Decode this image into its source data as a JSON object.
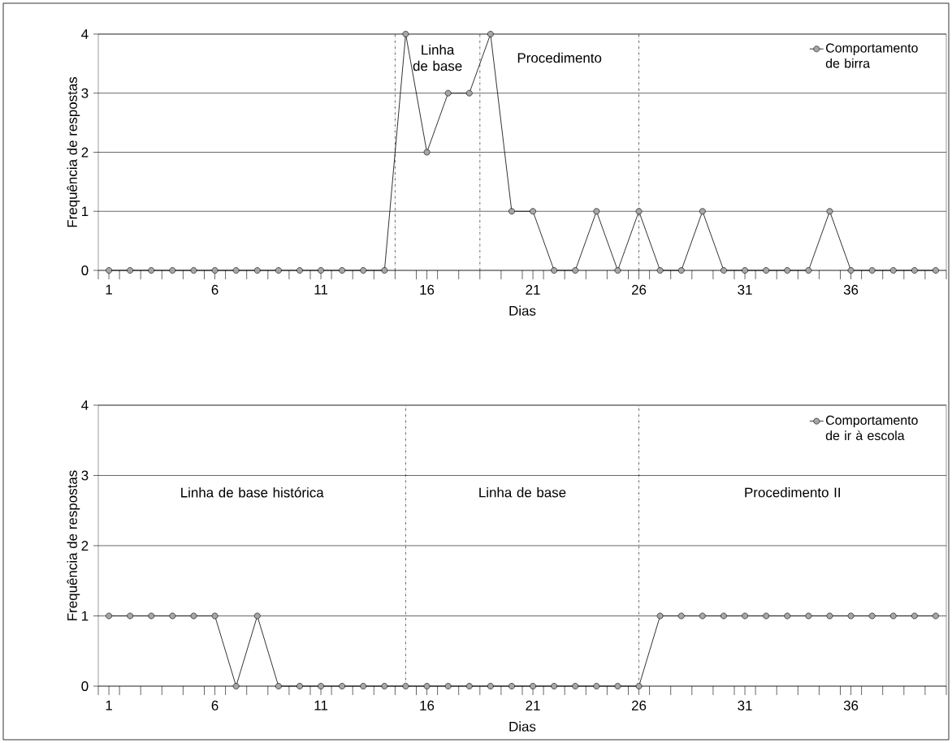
{
  "chart_data": [
    {
      "type": "line",
      "xlabel": "Dias",
      "ylabel": "Frequência de respostas",
      "x": [
        1,
        2,
        3,
        4,
        5,
        6,
        7,
        8,
        9,
        10,
        11,
        12,
        13,
        14,
        15,
        16,
        17,
        18,
        19,
        20,
        21,
        22,
        23,
        24,
        25,
        26,
        27,
        28,
        29,
        30,
        31,
        32,
        33,
        34,
        35,
        36,
        37,
        38,
        39,
        40
      ],
      "series": [
        {
          "name": "Comportamento de birra",
          "color": "#000000",
          "values": [
            0,
            0,
            0,
            0,
            0,
            0,
            0,
            0,
            0,
            0,
            0,
            0,
            0,
            0,
            4,
            2,
            3,
            3,
            4,
            1,
            1,
            0,
            0,
            1,
            0,
            1,
            0,
            0,
            1,
            0,
            0,
            0,
            0,
            0,
            1,
            0,
            0,
            0,
            0,
            0
          ]
        }
      ],
      "xlim": [
        0.5,
        40.5
      ],
      "xticks": [
        1,
        6,
        11,
        16,
        21,
        26,
        31,
        36,
        {
          "value": 0.5,
          "label": null
        },
        {
          "value": 1.5,
          "label": null
        },
        {
          "value": 2.5,
          "label": null
        },
        {
          "value": 3.5,
          "label": null
        },
        {
          "value": 4.5,
          "label": null
        },
        {
          "value": 5.5,
          "label": null
        },
        {
          "value": 6.5,
          "label": null
        },
        {
          "value": 7.5,
          "label": null
        },
        {
          "value": 8.5,
          "label": null
        },
        {
          "value": 9.5,
          "label": null
        },
        {
          "value": 10.5,
          "label": null
        },
        {
          "value": 11.5,
          "label": null
        },
        {
          "value": 12.5,
          "label": null
        },
        {
          "value": 13.5,
          "label": null
        },
        {
          "value": 14.5,
          "label": null
        },
        {
          "value": 15.5,
          "label": null
        },
        {
          "value": 16.5,
          "label": null
        },
        {
          "value": 17.5,
          "label": null
        },
        {
          "value": 18.5,
          "label": null
        },
        {
          "value": 19.5,
          "label": null
        },
        {
          "value": 20.5,
          "label": null
        },
        {
          "value": 21.5,
          "label": null
        },
        {
          "value": 22.5,
          "label": null
        },
        {
          "value": 23.5,
          "label": null
        },
        {
          "value": 24.5,
          "label": null
        },
        {
          "value": 25.5,
          "label": null
        },
        {
          "value": 26.5,
          "label": null
        },
        {
          "value": 27.5,
          "label": null
        },
        {
          "value": 28.5,
          "label": null
        },
        {
          "value": 29.5,
          "label": null
        },
        {
          "value": 30.5,
          "label": null
        },
        {
          "value": 31.5,
          "label": null
        },
        {
          "value": 32.5,
          "label": null
        },
        {
          "value": 33.5,
          "label": null
        },
        {
          "value": 34.5,
          "label": null
        },
        {
          "value": 35.5,
          "label": null
        },
        {
          "value": 36.5,
          "label": null
        },
        {
          "value": 37.5,
          "label": null
        },
        {
          "value": 38.5,
          "label": null
        },
        {
          "value": 39.5,
          "label": null
        },
        {
          "value": 40.5,
          "label": null
        }
      ],
      "ylim": [
        0,
        4
      ],
      "yticks": [
        0,
        1,
        2,
        3,
        4
      ],
      "grid": "y",
      "legend": "top right",
      "marker": "circle",
      "line_style": "solid",
      "ref_lines": [
        {
          "axis": "x",
          "value": 14.5,
          "line_style": "dashdot"
        },
        {
          "axis": "x",
          "value": 18.5,
          "line_style": "dashdot"
        },
        {
          "axis": "x",
          "value": 26,
          "line_style": "dashdot"
        }
      ],
      "annotations": [
        "Linha de base",
        "Procedimento"
      ]
    },
    {
      "type": "line",
      "xlabel": "Dias",
      "ylabel": "Frequência de respostas",
      "x": [
        1,
        2,
        3,
        4,
        5,
        6,
        7,
        8,
        9,
        10,
        11,
        12,
        13,
        14,
        15,
        16,
        17,
        18,
        19,
        20,
        21,
        22,
        23,
        24,
        25,
        26,
        27,
        28,
        29,
        30,
        31,
        32,
        33,
        34,
        35,
        36,
        37,
        38,
        39,
        40
      ],
      "series": [
        {
          "name": "Comportamento de ir à escola",
          "color": "#000000",
          "values": [
            1,
            1,
            1,
            1,
            1,
            1,
            0,
            1,
            0,
            0,
            0,
            0,
            0,
            0,
            0,
            0,
            0,
            0,
            0,
            0,
            0,
            0,
            0,
            0,
            0,
            0,
            1,
            1,
            1,
            1,
            1,
            1,
            1,
            1,
            1,
            1,
            1,
            1,
            1,
            1
          ]
        }
      ],
      "xlim": [
        0.5,
        40.5
      ],
      "xticks": [
        1,
        6,
        11,
        16,
        21,
        26,
        31,
        36,
        {
          "value": 0.5,
          "label": null
        },
        {
          "value": 1.5,
          "label": null
        },
        {
          "value": 2.5,
          "label": null
        },
        {
          "value": 3.5,
          "label": null
        },
        {
          "value": 4.5,
          "label": null
        },
        {
          "value": 5.5,
          "label": null
        },
        {
          "value": 6.5,
          "label": null
        },
        {
          "value": 7.5,
          "label": null
        },
        {
          "value": 8.5,
          "label": null
        },
        {
          "value": 9.5,
          "label": null
        },
        {
          "value": 10.5,
          "label": null
        },
        {
          "value": 11.5,
          "label": null
        },
        {
          "value": 12.5,
          "label": null
        },
        {
          "value": 13.5,
          "label": null
        },
        {
          "value": 14.5,
          "label": null
        },
        {
          "value": 15.5,
          "label": null
        },
        {
          "value": 16.5,
          "label": null
        },
        {
          "value": 17.5,
          "label": null
        },
        {
          "value": 18.5,
          "label": null
        },
        {
          "value": 19.5,
          "label": null
        },
        {
          "value": 20.5,
          "label": null
        },
        {
          "value": 21.5,
          "label": null
        },
        {
          "value": 22.5,
          "label": null
        },
        {
          "value": 23.5,
          "label": null
        },
        {
          "value": 24.5,
          "label": null
        },
        {
          "value": 25.5,
          "label": null
        },
        {
          "value": 26.5,
          "label": null
        },
        {
          "value": 27.5,
          "label": null
        },
        {
          "value": 28.5,
          "label": null
        },
        {
          "value": 29.5,
          "label": null
        },
        {
          "value": 30.5,
          "label": null
        },
        {
          "value": 31.5,
          "label": null
        },
        {
          "value": 32.5,
          "label": null
        },
        {
          "value": 33.5,
          "label": null
        },
        {
          "value": 34.5,
          "label": null
        },
        {
          "value": 35.5,
          "label": null
        },
        {
          "value": 36.5,
          "label": null
        },
        {
          "value": 37.5,
          "label": null
        },
        {
          "value": 38.5,
          "label": null
        },
        {
          "value": 39.5,
          "label": null
        },
        {
          "value": 40.5,
          "label": null
        }
      ],
      "ylim": [
        0,
        4
      ],
      "yticks": [
        0,
        1,
        2,
        3,
        4
      ],
      "grid": "y",
      "legend": "top right",
      "marker": "circle",
      "line_style": "solid",
      "ref_lines": [
        {
          "axis": "x",
          "value": 15,
          "line_style": "dashdot"
        },
        {
          "axis": "x",
          "value": 26,
          "line_style": "dashdot"
        }
      ],
      "annotations": [
        "Linha de base histórica",
        "Linha de base",
        "Procedimento II"
      ]
    }
  ]
}
